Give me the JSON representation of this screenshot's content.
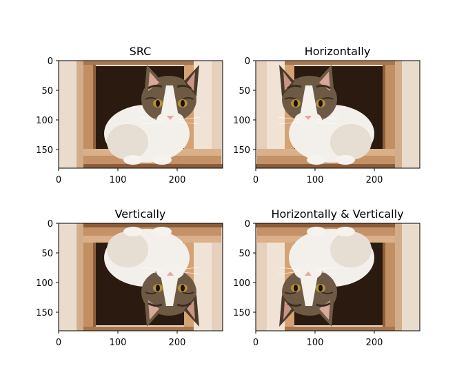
{
  "chart_data": [
    {
      "type": "image",
      "title": "SRC",
      "flip": "none",
      "xlim": [
        0,
        278
      ],
      "ylim": [
        0,
        182
      ],
      "x_ticks": [
        0,
        100,
        200
      ],
      "y_ticks": [
        0,
        50,
        100,
        150
      ],
      "x_tick_labels": [
        "0",
        "100",
        "200"
      ],
      "y_tick_labels": [
        "0",
        "50",
        "100",
        "150"
      ]
    },
    {
      "type": "image",
      "title": "Horizontally",
      "flip": "horizontal",
      "xlim": [
        0,
        278
      ],
      "ylim": [
        0,
        182
      ],
      "x_ticks": [
        0,
        100,
        200
      ],
      "y_ticks": [
        0,
        50,
        100,
        150
      ],
      "x_tick_labels": [
        "0",
        "100",
        "200"
      ],
      "y_tick_labels": [
        "0",
        "50",
        "100",
        "150"
      ]
    },
    {
      "type": "image",
      "title": "Vertically",
      "flip": "vertical",
      "xlim": [
        0,
        278
      ],
      "ylim": [
        0,
        182
      ],
      "x_ticks": [
        0,
        100,
        200
      ],
      "y_ticks": [
        0,
        50,
        100,
        150
      ],
      "x_tick_labels": [
        "0",
        "100",
        "200"
      ],
      "y_tick_labels": [
        "0",
        "50",
        "100",
        "150"
      ]
    },
    {
      "type": "image",
      "title": "Horizontally & Vertically",
      "flip": "both",
      "xlim": [
        0,
        278
      ],
      "ylim": [
        0,
        182
      ],
      "x_ticks": [
        0,
        100,
        200
      ],
      "y_ticks": [
        0,
        50,
        100,
        150
      ],
      "x_tick_labels": [
        "0",
        "100",
        "200"
      ],
      "y_tick_labels": [
        "0",
        "50",
        "100",
        "150"
      ]
    }
  ],
  "colors": {
    "background": "#ffffff",
    "axis": "#000000",
    "photo_dark": "#2a1a10",
    "photo_wood": "#c89a6c",
    "photo_wood_light": "#e8cfb4",
    "photo_wall": "#efe4d8",
    "cat_white": "#f3efea",
    "cat_tabby": "#6e5a44",
    "cat_tabby_dark": "#3b2c20",
    "cat_eye": "#b5912e",
    "cat_nose": "#e7a5a0"
  }
}
